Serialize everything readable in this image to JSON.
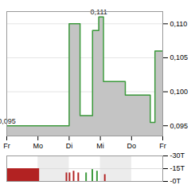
{
  "chart_data": [
    {
      "type": "line",
      "x": [
        0,
        2.0,
        2.35,
        2.75,
        2.95,
        3.1,
        3.8,
        4.6,
        4.75,
        5.0
      ],
      "values": [
        0.095,
        0.11,
        0.0965,
        0.109,
        0.111,
        0.1015,
        0.0995,
        0.0955,
        0.106,
        0.106
      ],
      "color": "#3c9a3c",
      "xlim": [
        0,
        5
      ],
      "xticks": [
        {
          "value": 0,
          "label": "Fr"
        },
        {
          "value": 1,
          "label": "Mo"
        },
        {
          "value": 2,
          "label": "Di"
        },
        {
          "value": 3,
          "label": "Mi"
        },
        {
          "value": 4,
          "label": "Do"
        },
        {
          "value": 5,
          "label": "Fr"
        }
      ],
      "ylim": [
        0.0935,
        0.1118
      ],
      "yticks": [
        {
          "value": 0.095,
          "label": "0,095"
        },
        {
          "value": 0.1,
          "label": "0,100"
        },
        {
          "value": 0.105,
          "label": "0,105"
        },
        {
          "value": 0.11,
          "label": "0,110"
        }
      ],
      "annotations": [
        {
          "text": "0,111",
          "x": 2.95,
          "y": 0.111
        },
        {
          "text": "0,095",
          "x": 0,
          "y": 0.095
        }
      ]
    },
    {
      "type": "bar",
      "x1": [
        0,
        1.9,
        2.0,
        2.13,
        2.28,
        2.53,
        2.73,
        2.88,
        3.13
      ],
      "x2": [
        1.05,
        1.95,
        2.05,
        2.18,
        2.33,
        2.58,
        2.78,
        2.93,
        3.18
      ],
      "values": [
        -15,
        -10,
        -10,
        -12,
        -10,
        -10,
        -14,
        -12,
        -8
      ],
      "colors": [
        "#b22222",
        "#b22222",
        "#b22222",
        "#b22222",
        "#b22222",
        "#3c9a3c",
        "#3c9a3c",
        "#3c9a3c",
        "#b22222"
      ],
      "xlim": [
        0,
        5
      ],
      "ylim": [
        0,
        -30
      ],
      "yticks": [
        {
          "value": -30,
          "label": "-30T"
        },
        {
          "value": -15,
          "label": "-15T"
        },
        {
          "value": 0,
          "label": "-0T"
        }
      ],
      "tick_labels": "y"
    }
  ]
}
